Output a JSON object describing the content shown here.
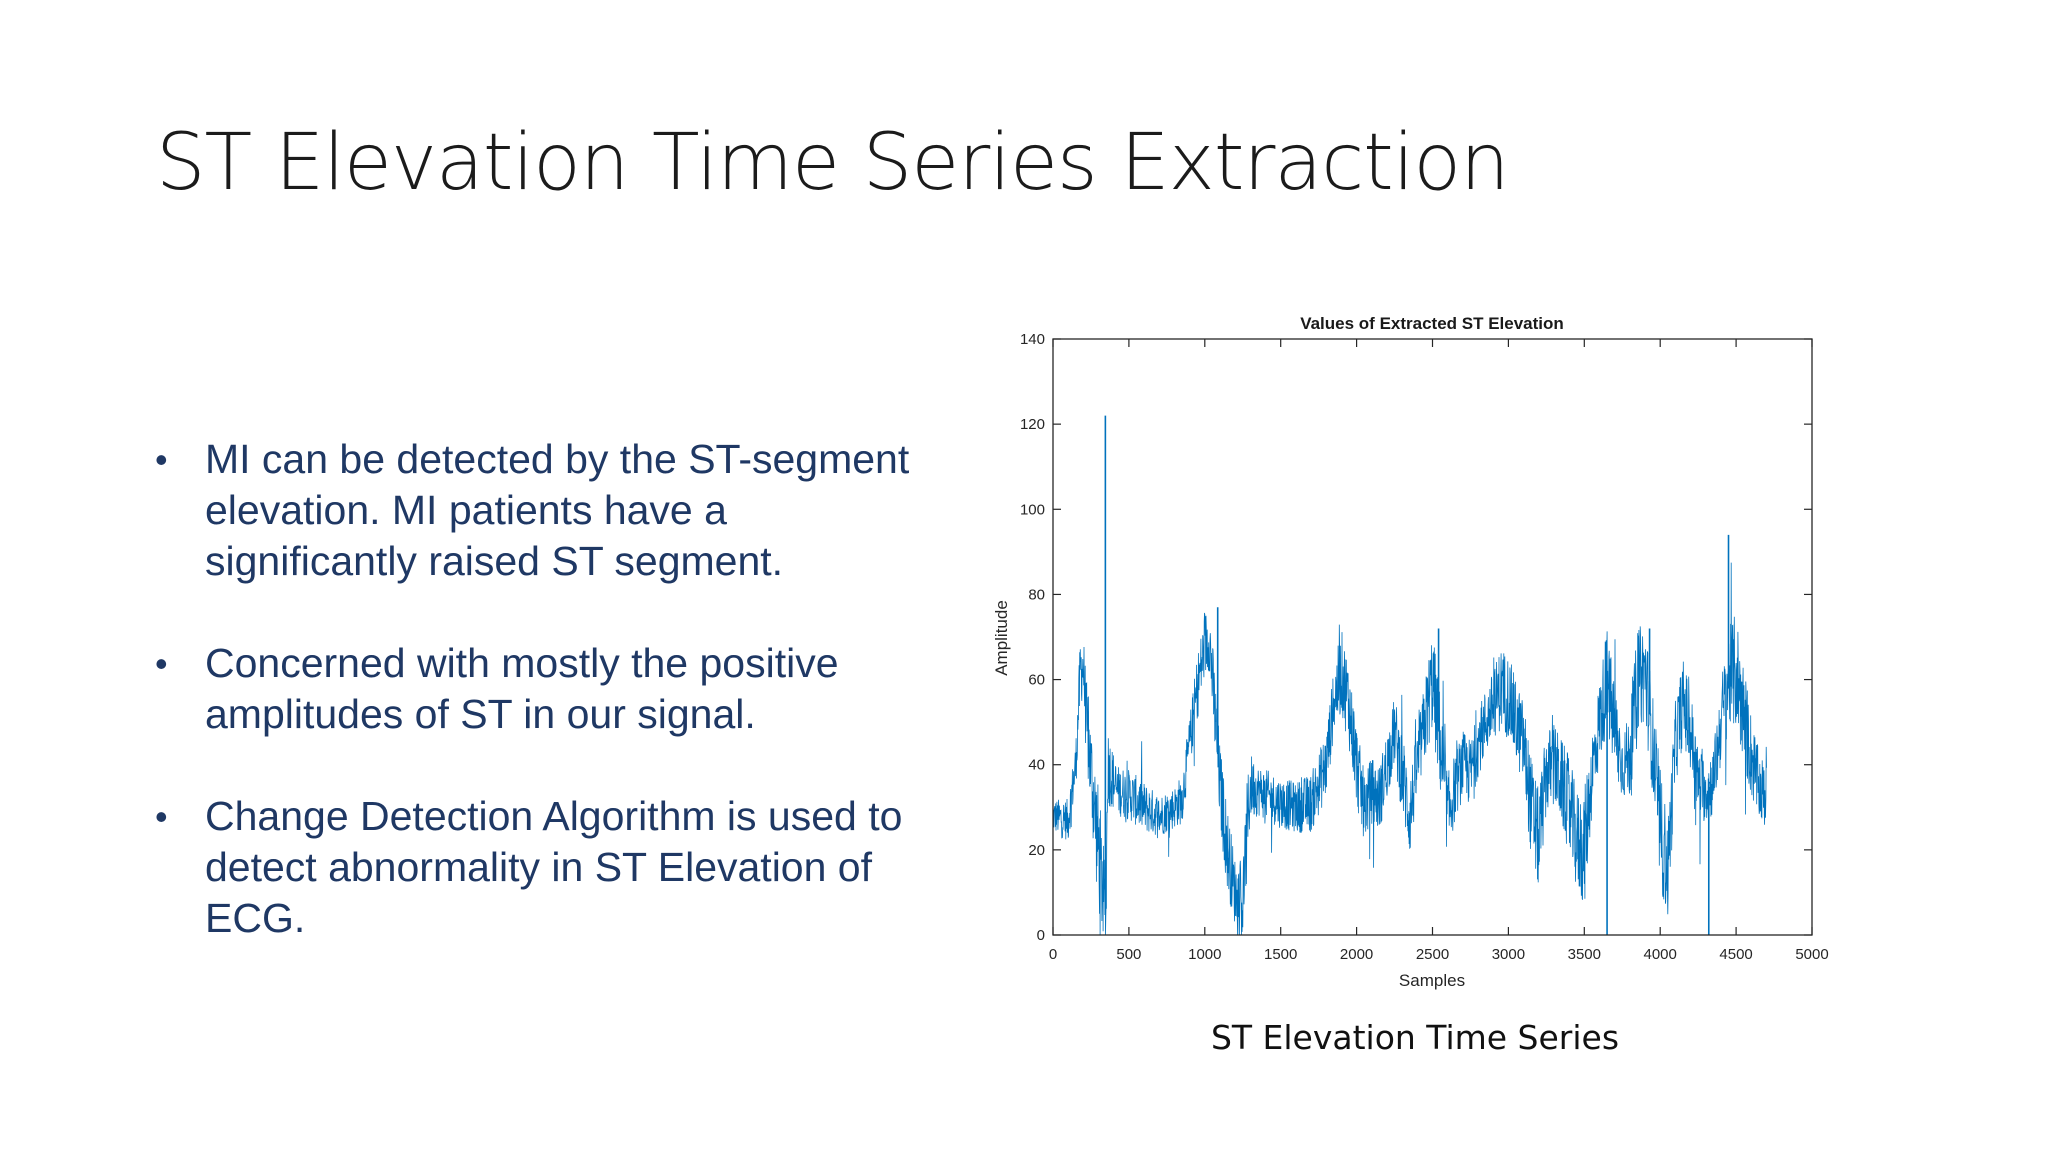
{
  "slide": {
    "title": "ST Elevation Time Series Extraction",
    "bullets": [
      "MI can be detected by the ST-segment elevation. MI patients have a significantly raised ST segment.",
      "Concerned with mostly the positive amplitudes of ST in our signal.",
      "Change Detection Algorithm is used to detect abnormality in ST Elevation of ECG."
    ],
    "bullet_symbol": "•",
    "caption": "ST Elevation Time Series"
  },
  "colors": {
    "text": "#1f3864",
    "series": "#0072bd"
  },
  "chart_data": {
    "type": "line",
    "title": "Values of Extracted ST Elevation",
    "xlabel": "Samples",
    "ylabel": "Amplitude",
    "xlim": [
      0,
      5000
    ],
    "ylim": [
      0,
      140
    ],
    "xticks": [
      0,
      500,
      1000,
      1500,
      2000,
      2500,
      3000,
      3500,
      4000,
      4500,
      5000
    ],
    "yticks": [
      0,
      20,
      40,
      60,
      80,
      100,
      120,
      140
    ],
    "grid": false,
    "series": [
      {
        "name": "ST Elevation",
        "envelope_x": [
          0,
          100,
          150,
          180,
          200,
          220,
          260,
          300,
          330,
          350,
          360,
          380,
          420,
          500,
          600,
          700,
          800,
          850,
          900,
          950,
          1000,
          1030,
          1060,
          1100,
          1150,
          1200,
          1250,
          1280,
          1300,
          1350,
          1400,
          1500,
          1600,
          1700,
          1800,
          1850,
          1900,
          1950,
          2000,
          2050,
          2100,
          2150,
          2200,
          2250,
          2300,
          2350,
          2400,
          2450,
          2500,
          2550,
          2600,
          2650,
          2700,
          2750,
          2800,
          2850,
          2900,
          2950,
          3000,
          3050,
          3100,
          3150,
          3200,
          3250,
          3300,
          3350,
          3400,
          3450,
          3500,
          3550,
          3600,
          3650,
          3700,
          3750,
          3800,
          3850,
          3900,
          3950,
          4000,
          4050,
          4100,
          4150,
          4200,
          4250,
          4300,
          4350,
          4400,
          4450,
          4500,
          4550,
          4600,
          4650,
          4700
        ],
        "center": [
          28,
          27,
          40,
          62,
          63,
          50,
          35,
          20,
          10,
          5,
          40,
          38,
          34,
          33,
          30,
          28,
          30,
          32,
          45,
          58,
          68,
          70,
          55,
          35,
          20,
          10,
          8,
          25,
          35,
          34,
          33,
          31,
          30,
          31,
          40,
          55,
          62,
          54,
          40,
          30,
          34,
          32,
          40,
          48,
          38,
          28,
          40,
          50,
          60,
          45,
          28,
          35,
          40,
          38,
          45,
          50,
          54,
          58,
          56,
          50,
          45,
          30,
          22,
          38,
          40,
          36,
          30,
          22,
          20,
          38,
          50,
          60,
          48,
          40,
          42,
          60,
          62,
          45,
          25,
          15,
          45,
          55,
          48,
          36,
          34,
          36,
          50,
          60,
          62,
          52,
          42,
          35,
          32
        ],
        "spread": [
          4,
          5,
          6,
          8,
          8,
          10,
          12,
          15,
          12,
          8,
          10,
          8,
          6,
          6,
          6,
          5,
          5,
          6,
          6,
          8,
          8,
          8,
          10,
          10,
          10,
          8,
          10,
          12,
          8,
          6,
          6,
          6,
          6,
          7,
          8,
          8,
          10,
          10,
          10,
          8,
          8,
          8,
          8,
          8,
          10,
          10,
          8,
          10,
          12,
          12,
          10,
          8,
          8,
          8,
          8,
          8,
          8,
          10,
          10,
          10,
          10,
          12,
          12,
          10,
          10,
          10,
          12,
          12,
          14,
          10,
          10,
          12,
          12,
          8,
          10,
          12,
          12,
          12,
          14,
          12,
          10,
          10,
          10,
          8,
          8,
          8,
          10,
          12,
          14,
          12,
          10,
          8,
          8
        ],
        "spikes": [
          {
            "x": 345,
            "y": 122
          },
          {
            "x": 1085,
            "y": 77
          },
          {
            "x": 2540,
            "y": 72
          },
          {
            "x": 3650,
            "y": 0
          },
          {
            "x": 3930,
            "y": 72
          },
          {
            "x": 4320,
            "y": 0
          },
          {
            "x": 4450,
            "y": 94
          }
        ]
      }
    ]
  }
}
